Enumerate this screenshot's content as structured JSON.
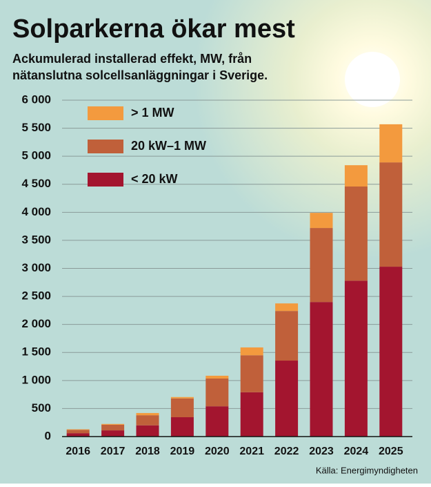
{
  "chart_data": {
    "type": "stacked_bar",
    "title": "Solparkerna ökar mest",
    "subtitle": [
      "Ackumulerad installerad effekt, MW, från",
      "nätanslutna solcellsanläggningar i Sverige."
    ],
    "source": "Källa: Energimyndigheten",
    "categories": [
      "2016",
      "2017",
      "2018",
      "2019",
      "2020",
      "2021",
      "2022",
      "2023",
      "2024",
      "2025"
    ],
    "series": [
      {
        "name": "< 20 kW",
        "color": "#a3152f",
        "values": [
          60,
          110,
          200,
          345,
          540,
          790,
          1355,
          2400,
          2780,
          3030
        ]
      },
      {
        "name": "20 kW–1 MW",
        "color": "#c0603a",
        "values": [
          60,
          100,
          180,
          335,
          495,
          660,
          885,
          1320,
          1680,
          1860
        ]
      },
      {
        "name": "> 1 MW",
        "color": "#f39a3e",
        "values": [
          10,
          15,
          40,
          25,
          50,
          140,
          135,
          270,
          380,
          680
        ]
      }
    ],
    "ylim": [
      0,
      6000
    ],
    "yticks": [
      0,
      500,
      {
        "value": 1000,
        "label": "1 000"
      },
      {
        "value": 1500,
        "label": "1 500"
      },
      {
        "value": 2000,
        "label": "2 000"
      },
      {
        "value": 2500,
        "label": "2 500"
      },
      {
        "value": 3000,
        "label": "3 000"
      },
      {
        "value": 3500,
        "label": "3 500"
      },
      {
        "value": 4000,
        "label": "4 000"
      },
      {
        "value": 4500,
        "label": "4 500"
      },
      {
        "value": 5000,
        "label": "5 000"
      },
      {
        "value": 5500,
        "label": "5 500"
      },
      {
        "value": 6000,
        "label": "6 000"
      }
    ],
    "grid": true
  }
}
